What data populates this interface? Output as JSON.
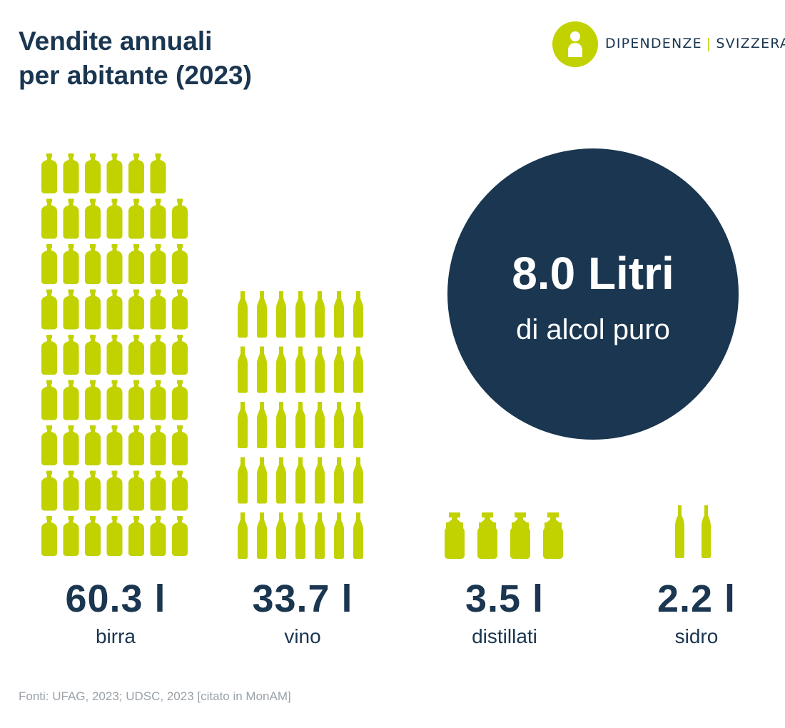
{
  "title_lines": [
    "Vendite annuali",
    "per abitante (2023)"
  ],
  "logo": {
    "left": "DIPENDENZE",
    "separator": "|",
    "right": "SVIZZERA"
  },
  "colors": {
    "navy": "#1a3650",
    "lime": "#c1d200",
    "grey": "#9aa1a8"
  },
  "total": {
    "value": "8.0 Litri",
    "label": "di alcol puro"
  },
  "source": "Fonti: UFAG, 2023; UDSC, 2023 [citato in MonAM]",
  "chart_data": {
    "type": "bar",
    "title": "Vendite annuali per abitante (2023)",
    "unit": "l",
    "categories": [
      "birra",
      "vino",
      "distillati",
      "sidro"
    ],
    "values": [
      60.3,
      33.7,
      3.5,
      2.2
    ],
    "value_labels": [
      "60.3 l",
      "33.7 l",
      "3.5 l",
      "2.2 l"
    ],
    "icons": [
      "beer-bottle-icon",
      "wine-bottle-icon",
      "spirits-bottle-icon",
      "cider-bottle-icon"
    ],
    "icon_counts": [
      62,
      35,
      4,
      2
    ]
  }
}
